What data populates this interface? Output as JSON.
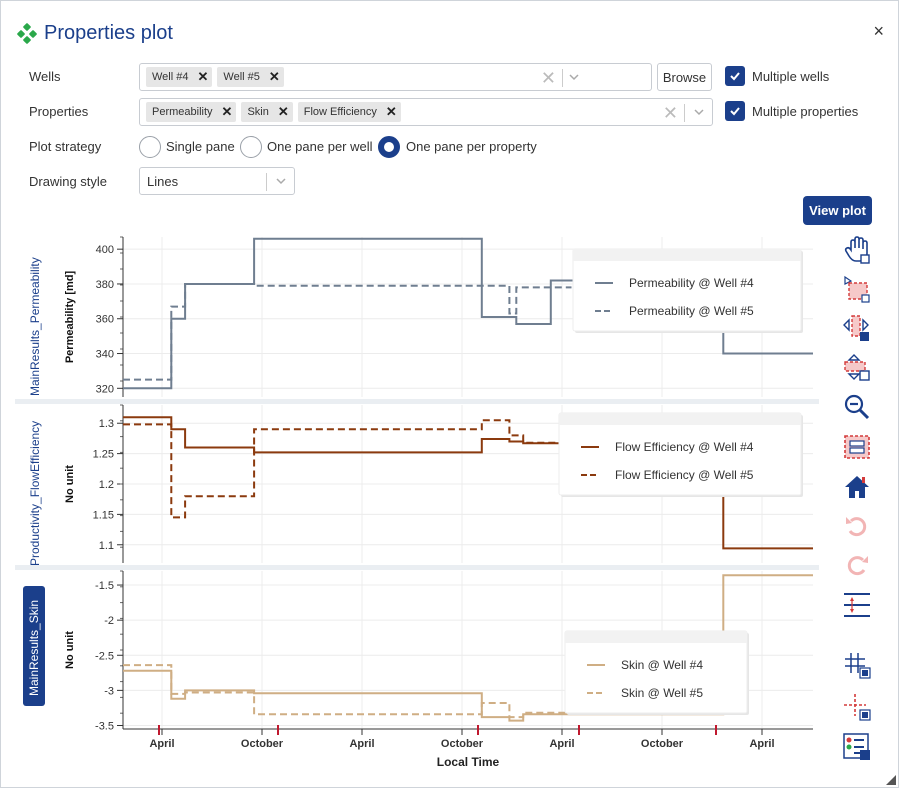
{
  "dialog": {
    "title": "Properties plot",
    "close_label": "×"
  },
  "form": {
    "wells_label": "Wells",
    "wells_tags": [
      "Well #4",
      "Well #5"
    ],
    "browse_label": "Browse",
    "multiple_wells_label": "Multiple wells",
    "properties_label": "Properties",
    "properties_tags": [
      "Permeability",
      "Skin",
      "Flow Efficiency"
    ],
    "multiple_properties_label": "Multiple properties",
    "plot_strategy_label": "Plot strategy",
    "strategies": [
      "Single pane",
      "One pane per well",
      "One pane per property"
    ],
    "selected_strategy": "One pane per property",
    "drawing_style_label": "Drawing style",
    "drawing_style_value": "Lines",
    "view_plot_label": "View plot"
  },
  "side_labels": {
    "top": "MainResults_Permeability",
    "middle": "Productivity_FlowEfficiency",
    "bottom": "MainResults_Skin"
  },
  "toolbar": [
    "pan-icon",
    "box-zoom-icon",
    "x-pan-icon",
    "y-pan-icon",
    "zoom-out-icon",
    "box-select-icon",
    "reset-home-icon",
    "undo-icon",
    "redo-icon",
    "range-icon",
    "crosshair-grid-icon",
    "crosshair-icon",
    "legend-toggle-icon"
  ],
  "colors": {
    "accent": "#1b3f8b",
    "permeability": "#6f7e90",
    "flow_efficiency": "#8b3a0e",
    "skin": "#cfae84",
    "checkbox": "#1b3f8b"
  },
  "chart_data": [
    {
      "type": "line",
      "ylabel": "Permeability [md]",
      "ylim": [
        315,
        407
      ],
      "yticks": [
        320,
        340,
        360,
        380,
        400
      ],
      "legend": "top-right",
      "series": [
        {
          "name": "Permeability @ Well #4",
          "style": "solid",
          "x": [
            0,
            0.07,
            0.07,
            0.09,
            0.09,
            0.19,
            0.19,
            0.52,
            0.52,
            0.57,
            0.57,
            0.62,
            0.62,
            0.87,
            0.87,
            1.0
          ],
          "y": [
            320,
            320,
            360,
            360,
            380,
            380,
            406,
            406,
            361,
            361,
            357,
            357,
            382,
            382,
            340,
            340
          ]
        },
        {
          "name": "Permeability @ Well #5",
          "style": "dashed",
          "x": [
            0,
            0.07,
            0.07,
            0.09,
            0.09,
            0.19,
            0.19,
            0.56,
            0.56,
            0.57,
            0.57,
            0.65
          ],
          "y": [
            325,
            325,
            367,
            367,
            380,
            380,
            379,
            379,
            363,
            363,
            378,
            378
          ]
        }
      ]
    },
    {
      "type": "line",
      "ylabel": "No unit",
      "ylim": [
        1.07,
        1.33
      ],
      "yticks": [
        1.1,
        1.15,
        1.2,
        1.25,
        1.3
      ],
      "legend": "top-right",
      "series": [
        {
          "name": "Flow Efficiency @ Well #4",
          "style": "solid",
          "x": [
            0,
            0.07,
            0.07,
            0.09,
            0.09,
            0.19,
            0.19,
            0.52,
            0.52,
            0.56,
            0.56,
            0.58,
            0.58,
            0.64,
            0.64,
            0.87,
            0.87,
            1.0
          ],
          "y": [
            1.31,
            1.31,
            1.29,
            1.29,
            1.26,
            1.26,
            1.252,
            1.252,
            1.274,
            1.274,
            1.27,
            1.27,
            1.267,
            1.267,
            1.265,
            1.265,
            1.094,
            1.094
          ]
        },
        {
          "name": "Flow Efficiency @ Well #5",
          "style": "dashed",
          "x": [
            0,
            0.07,
            0.07,
            0.09,
            0.09,
            0.19,
            0.19,
            0.52,
            0.52,
            0.56,
            0.56,
            0.58,
            0.58,
            0.64
          ],
          "y": [
            1.298,
            1.298,
            1.145,
            1.145,
            1.18,
            1.18,
            1.29,
            1.29,
            1.305,
            1.305,
            1.28,
            1.28,
            1.268,
            1.268
          ]
        }
      ]
    },
    {
      "type": "line",
      "ylabel": "No unit",
      "ylim": [
        -3.55,
        -1.3
      ],
      "yticks": [
        -1.5,
        -2,
        -2.5,
        -3,
        -3.5
      ],
      "legend": "top-right",
      "xlabel": "Local Time",
      "xticks": [
        "April",
        "October",
        "April",
        "October",
        "April",
        "October",
        "April"
      ],
      "series": [
        {
          "name": "Skin @ Well #4",
          "style": "solid",
          "x": [
            0,
            0.07,
            0.07,
            0.09,
            0.09,
            0.19,
            0.19,
            0.52,
            0.52,
            0.56,
            0.56,
            0.58,
            0.58,
            0.87,
            0.87,
            1.0
          ],
          "y": [
            -2.72,
            -2.72,
            -3.12,
            -3.12,
            -3.0,
            -3.0,
            -3.04,
            -3.04,
            -3.38,
            -3.38,
            -3.43,
            -3.43,
            -3.34,
            -3.34,
            -1.36,
            -1.36
          ]
        },
        {
          "name": "Skin @ Well #5",
          "style": "dashed",
          "x": [
            0,
            0.07,
            0.07,
            0.09,
            0.09,
            0.19,
            0.19,
            0.52,
            0.52,
            0.56,
            0.56,
            0.58,
            0.58,
            0.67
          ],
          "y": [
            -2.64,
            -2.64,
            -3.05,
            -3.05,
            -3.03,
            -3.03,
            -3.34,
            -3.34,
            -3.18,
            -3.18,
            -3.38,
            -3.38,
            -3.32,
            -3.32
          ]
        }
      ]
    }
  ]
}
